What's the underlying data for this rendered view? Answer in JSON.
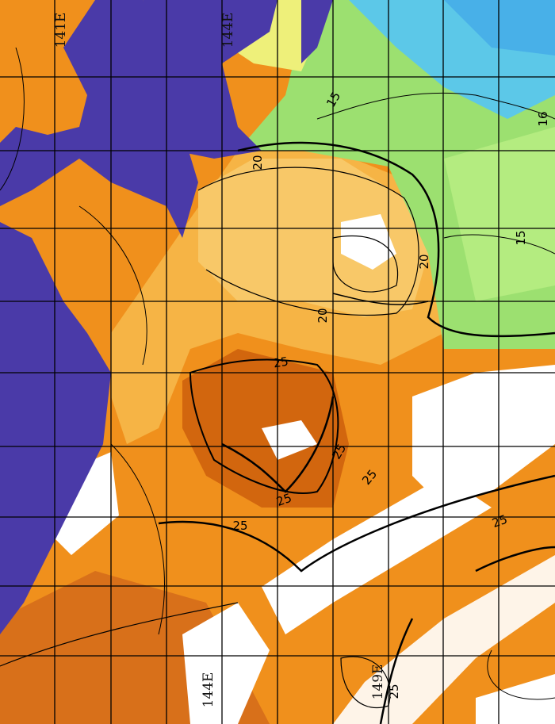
{
  "map": {
    "type": "sea surface temperature contour map",
    "colors": {
      "land_mask": "#4a3aa8",
      "warm": "#f0901c",
      "warmest": "#d2660e",
      "mid": "#f6b445",
      "pale": "#f8c868",
      "cool_yellow": "#eef07a",
      "cool_green": "#9ce070",
      "cold_cyan": "#5cc8e8",
      "cloud": "#ffffff",
      "contour": "#000000",
      "grid": "#000000"
    },
    "longitude_labels": [
      "141E",
      "144E",
      "144E",
      "149E"
    ],
    "contour_labels": [
      "15",
      "16",
      "15",
      "20",
      "20",
      "20",
      "25",
      "25",
      "25",
      "25",
      "25",
      "25",
      "25"
    ],
    "grid": true
  }
}
